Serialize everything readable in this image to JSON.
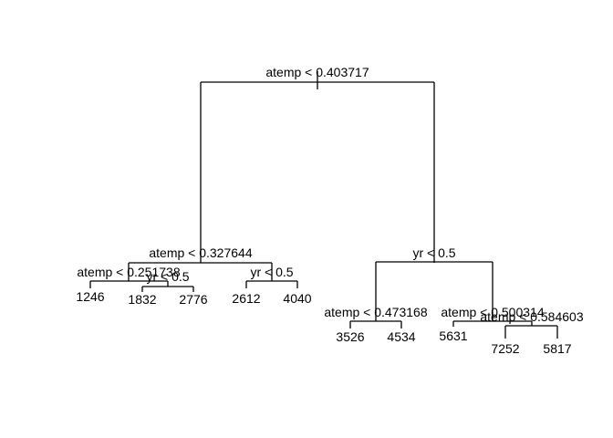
{
  "tree": {
    "root_split": "atemp < 0.403717",
    "left": {
      "split": "atemp < 0.327644",
      "left": {
        "split": "atemp < 0.251738",
        "left_leaf": "1246",
        "right": {
          "split": "yr < 0.5",
          "left_leaf": "1832",
          "right_leaf": "2776"
        }
      },
      "right": {
        "split": "yr < 0.5",
        "left_leaf": "2612",
        "right_leaf": "4040"
      }
    },
    "right": {
      "split": "yr < 0.5",
      "left": {
        "split": "atemp < 0.473168",
        "left_leaf": "3526",
        "right_leaf": "4534"
      },
      "right": {
        "split": "atemp < 0.500314",
        "left_leaf": "5631",
        "right": {
          "split": "atemp < 0.584603",
          "left_leaf": "7252",
          "right_leaf": "5817"
        }
      }
    }
  }
}
